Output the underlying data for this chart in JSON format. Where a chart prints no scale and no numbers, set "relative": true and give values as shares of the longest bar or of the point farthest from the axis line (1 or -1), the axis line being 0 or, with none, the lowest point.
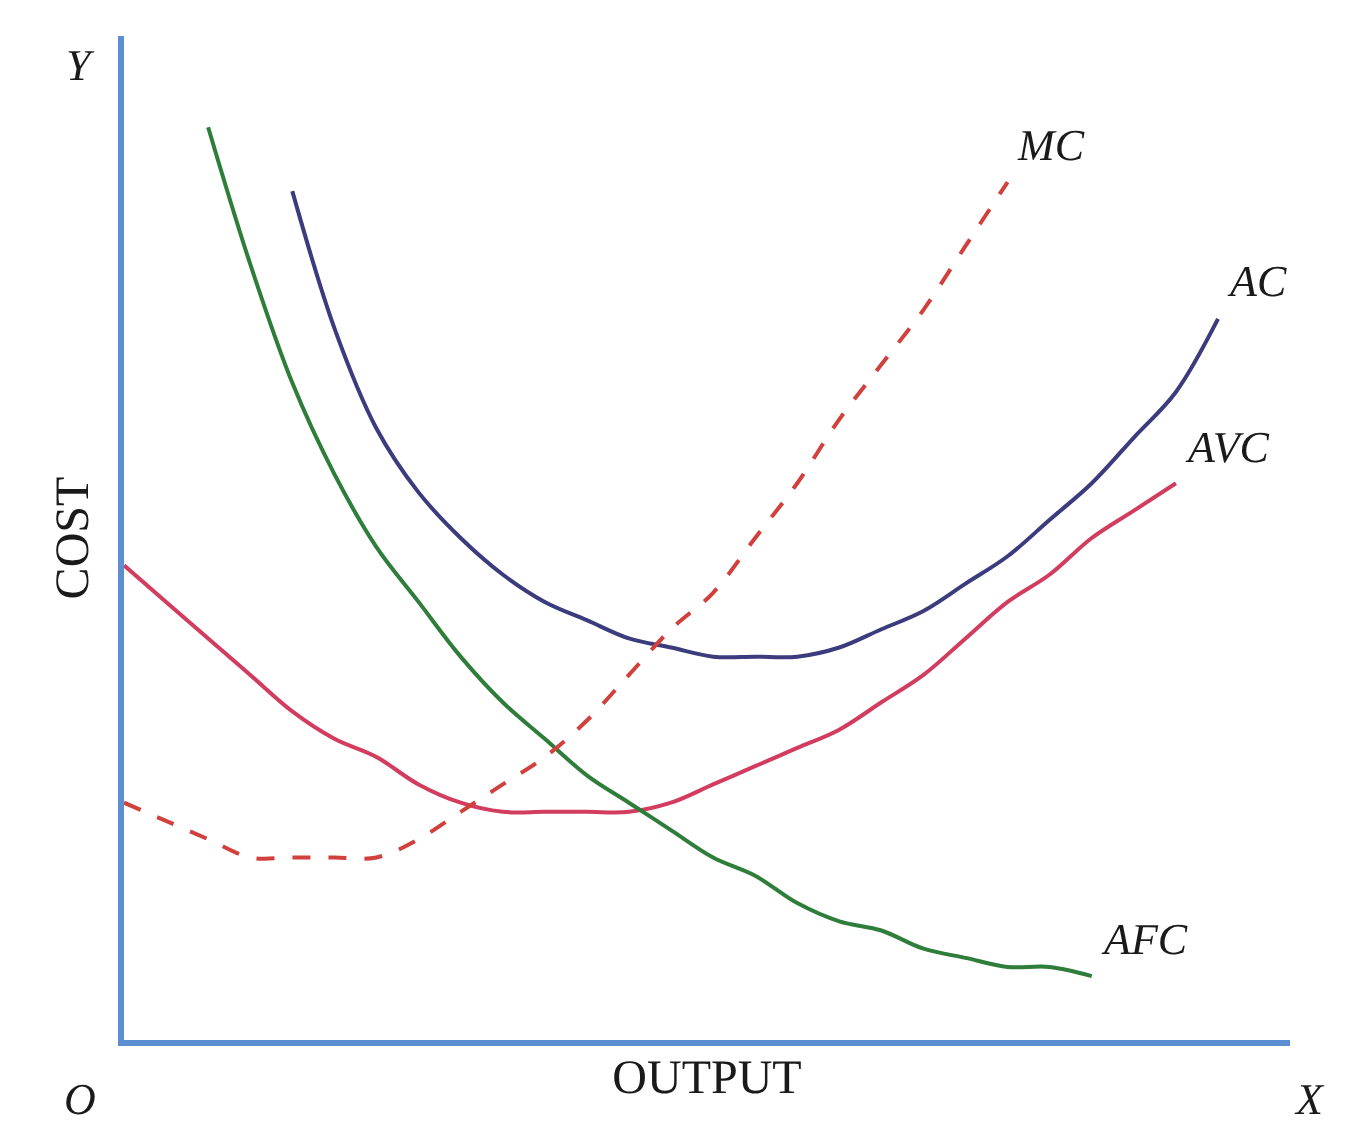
{
  "chart_data": {
    "type": "line",
    "relative": true,
    "xlabel": "OUTPUT",
    "ylabel": "COST",
    "annotations": [
      "O",
      "X",
      "Y"
    ],
    "legend": false,
    "marker": "none",
    "tick_labels": false,
    "categories": [
      null,
      null,
      null,
      null,
      null,
      null,
      null,
      null,
      null,
      null,
      null,
      null,
      null,
      null,
      null,
      null,
      null,
      null,
      null,
      null,
      null,
      null,
      null,
      null,
      null,
      null,
      null
    ],
    "series": [
      {
        "name": "AVC",
        "color": "#d23c5f",
        "line_style": "solid",
        "values": [
          0.52,
          0.48,
          0.44,
          0.4,
          0.36,
          0.33,
          0.31,
          0.28,
          0.26,
          0.25,
          0.25,
          0.25,
          0.25,
          0.26,
          0.28,
          0.3,
          0.32,
          0.34,
          0.37,
          0.4,
          0.44,
          0.48,
          0.51,
          0.55,
          0.58,
          0.61,
          null
        ]
      },
      {
        "name": "AC",
        "color": "#3b3b7e",
        "line_style": "solid",
        "values": [
          null,
          null,
          null,
          null,
          0.93,
          0.78,
          0.67,
          0.6,
          0.55,
          0.51,
          0.48,
          0.46,
          0.44,
          0.43,
          0.42,
          0.42,
          0.42,
          0.43,
          0.45,
          0.47,
          0.5,
          0.53,
          0.57,
          0.61,
          0.66,
          0.71,
          0.79
        ]
      },
      {
        "name": "AFC",
        "color": "#2e7d3a",
        "line_style": "solid",
        "values": [
          null,
          null,
          1.0,
          0.85,
          0.72,
          0.62,
          0.54,
          0.48,
          0.42,
          0.37,
          0.33,
          0.29,
          0.26,
          0.23,
          0.2,
          0.18,
          0.15,
          0.13,
          0.12,
          0.1,
          0.09,
          0.08,
          0.08,
          0.07,
          null,
          null,
          null
        ]
      },
      {
        "name": "MC",
        "color": "#d0403c",
        "line_style": "dashed",
        "values": [
          0.26,
          0.24,
          0.22,
          0.2,
          0.2,
          0.2,
          0.2,
          0.22,
          0.25,
          0.28,
          0.31,
          0.35,
          0.4,
          0.45,
          0.49,
          0.55,
          0.61,
          0.68,
          0.74,
          0.8,
          0.87,
          0.94,
          null,
          null,
          null,
          null,
          null
        ]
      }
    ]
  }
}
